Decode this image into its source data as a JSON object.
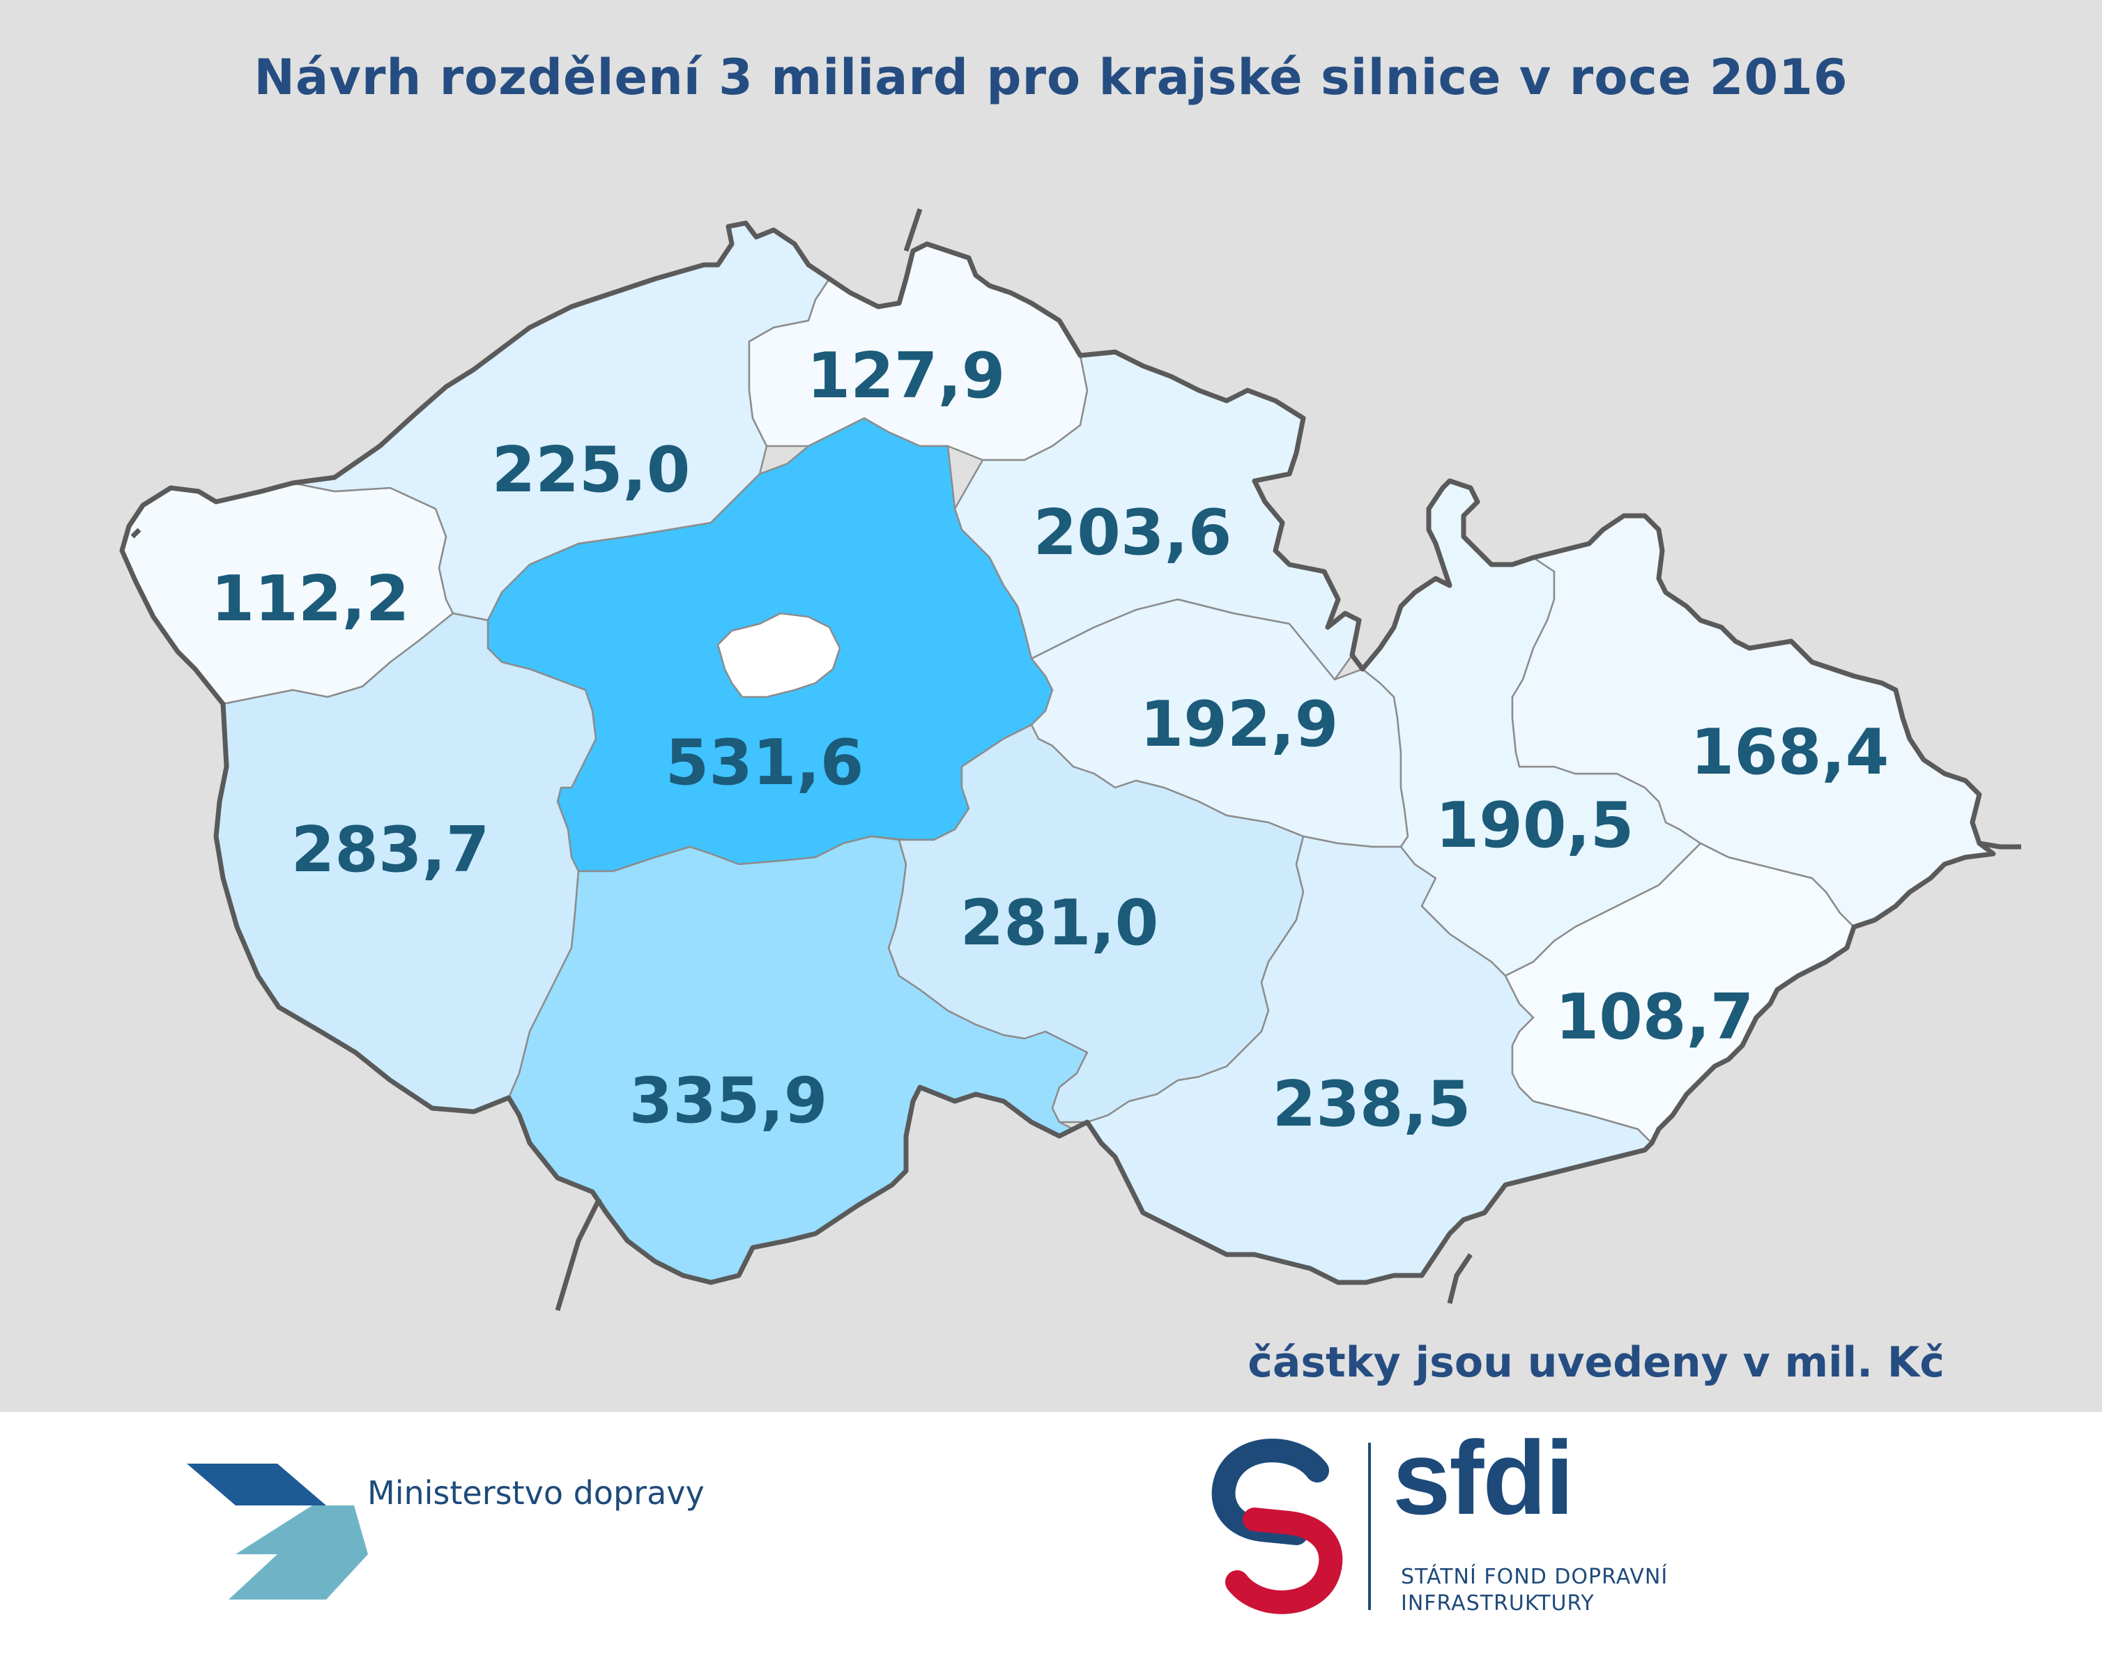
{
  "title": "Návrh rozdělení 3 miliard pro krajské silnice v roce 2016",
  "units_note": "částky jsou uvedeny v mil. Kč",
  "colors": {
    "title": "#254d82",
    "value_label": "#1c5b7a",
    "background": "#e0e0e0",
    "border": "#5a5a5a"
  },
  "regions": [
    {
      "key": "karlovarsky",
      "value": "112,2",
      "fill": "#f5faff"
    },
    {
      "key": "ustecky",
      "value": "225,0",
      "fill": "#ddf1fe"
    },
    {
      "key": "liberecky",
      "value": "127,9",
      "fill": "#f4faff"
    },
    {
      "key": "kralovehradecky",
      "value": "203,6",
      "fill": "#e3f4fe"
    },
    {
      "key": "stredocesky",
      "value": "531,6",
      "fill": "#40c3fe"
    },
    {
      "key": "praha",
      "value": "",
      "fill": "#ffffff"
    },
    {
      "key": "pardubicky",
      "value": "192,9",
      "fill": "#e6f5fe"
    },
    {
      "key": "plzensky",
      "value": "283,7",
      "fill": "#cdebfd"
    },
    {
      "key": "jihocesky",
      "value": "335,9",
      "fill": "#99defe"
    },
    {
      "key": "vysocina",
      "value": "281,0",
      "fill": "#cdebfd"
    },
    {
      "key": "jihomoravsky",
      "value": "238,5",
      "fill": "#daf0fe"
    },
    {
      "key": "olomoucky",
      "value": "190,5",
      "fill": "#e8f6fe"
    },
    {
      "key": "moravskoslezsky",
      "value": "168,4",
      "fill": "#eef8fe"
    },
    {
      "key": "zlinsky",
      "value": "108,7",
      "fill": "#f6fbff"
    }
  ],
  "footer": {
    "ministry_name": "Ministerstvo dopravy",
    "sfdi_wordmark": "sfdi",
    "sfdi_line1": "STÁTNÍ FOND DOPRAVNÍ",
    "sfdi_line2": "INFRASTRUKTURY"
  }
}
